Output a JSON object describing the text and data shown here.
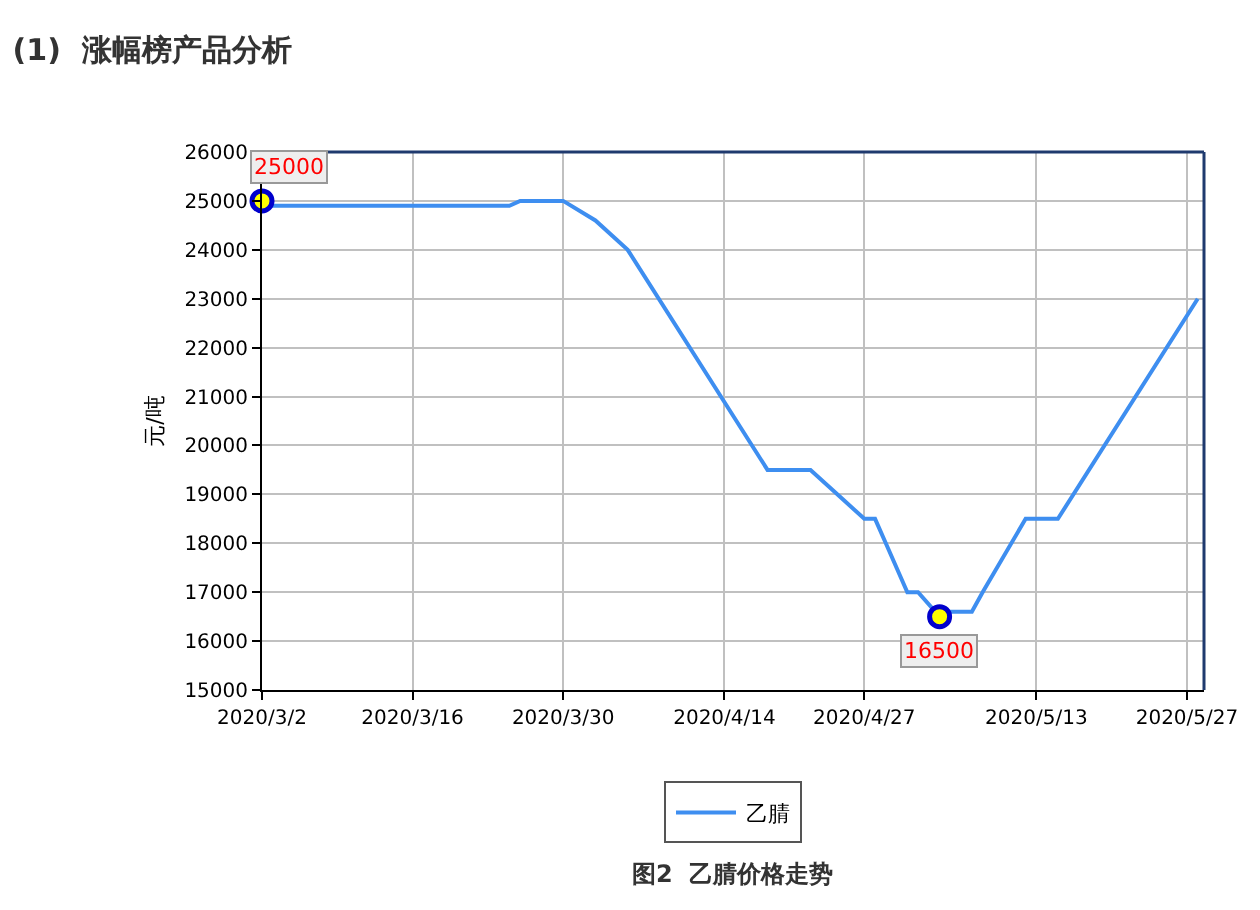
{
  "chart_data": {
    "type": "line",
    "title": "(1)  涨幅榜产品分析",
    "ylabel": "元/吨",
    "annotations": [
      "图2  乙腈价格走势"
    ],
    "series": [
      {
        "name": "乙腈",
        "color": "#3e8ef0",
        "x": [
          "2020-03-02",
          "2020-03-03",
          "2020-03-25",
          "2020-03-26",
          "2020-03-30",
          "2020-04-02",
          "2020-04-04",
          "2020-04-05",
          "2020-04-18",
          "2020-04-22",
          "2020-04-25",
          "2020-04-27",
          "2020-04-28",
          "2020-04-29",
          "2020-05-01",
          "2020-05-02",
          "2020-05-04",
          "2020-05-05",
          "2020-05-07",
          "2020-05-08",
          "2020-05-12",
          "2020-05-15",
          "2020-05-28"
        ],
        "values": [
          25000,
          24900,
          24900,
          25000,
          25000,
          24600,
          24200,
          24000,
          19500,
          19500,
          18900,
          18500,
          18500,
          18000,
          17000,
          17000,
          16500,
          16600,
          16600,
          17000,
          18500,
          18500,
          23000
        ]
      },
      {
        "type": "scatter",
        "marker": "circle",
        "color": "#ffff00",
        "x": [
          "2020-03-02",
          "2020-05-04"
        ],
        "values": [
          25000,
          16500
        ],
        "value_labels": [
          "25000",
          "16500"
        ]
      }
    ],
    "xlim": [
      "2020-03-02",
      "2020-05-28T14:00"
    ],
    "xticks": [
      {
        "value": "2020-03-02",
        "label": "2020/3/2"
      },
      {
        "value": "2020-03-16",
        "label": "2020/3/16"
      },
      {
        "value": "2020-03-30",
        "label": "2020/3/30"
      },
      {
        "value": "2020-04-14",
        "label": "2020/4/14"
      },
      {
        "value": "2020-04-27",
        "label": "2020/4/27"
      },
      {
        "value": "2020-05-13",
        "label": "2020/5/13"
      },
      {
        "value": "2020-05-27",
        "label": "2020/5/27"
      }
    ],
    "ylim": [
      15000,
      26000
    ],
    "yticks": [
      15000,
      16000,
      17000,
      18000,
      19000,
      20000,
      21000,
      22000,
      23000,
      24000,
      25000,
      26000
    ],
    "grid": true,
    "legend": "bottom",
    "marker": "none",
    "line_style": "solid"
  }
}
